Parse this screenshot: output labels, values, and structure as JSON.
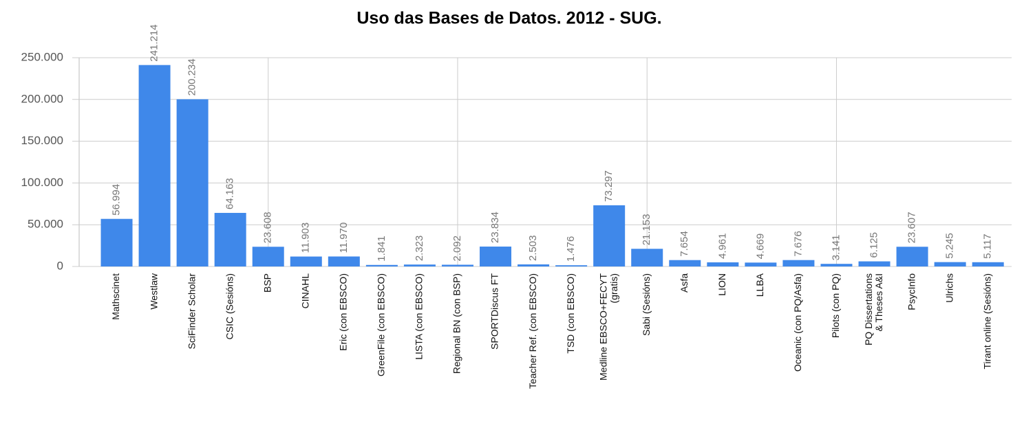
{
  "chart_data": {
    "type": "bar",
    "title": "Uso das Bases de Datos. 2012 - SUG.",
    "categories": [
      "Mathscinet",
      "Westlaw",
      "SciFinder Scholar",
      "CSIC (Sesións)",
      "BSP",
      "CINAHL",
      "Eric (con EBSCO)",
      "GreenFile (con EBSCO)",
      "LISTA (con EBSCO)",
      "Regional BN (con BSP)",
      "SPORTDiscus FT",
      "Teacher Ref. (con EBSCO)",
      "TSD (con EBSCO)",
      "Medline EBSCO+FECYT\n(gratis)",
      "Sabi (Sesións)",
      "Asfa",
      "LION",
      "LLBA",
      "Oceanic (con PQ/Asfa)",
      "Pilots (con PQ)",
      "PQ Dissertations\n& Theses A&I",
      "PsycInfo",
      "Ulrichs",
      "Tirant online (Sesións)"
    ],
    "values": [
      56994,
      241214,
      200234,
      64163,
      23608,
      11903,
      11970,
      1841,
      2323,
      2092,
      23834,
      2503,
      1476,
      73297,
      21153,
      7654,
      4961,
      4669,
      7676,
      3141,
      6125,
      23607,
      5245,
      5117
    ],
    "value_labels": [
      "56.994",
      "241.214",
      "200.234",
      "64.163",
      "23.608",
      "11.903",
      "11.970",
      "1.841",
      "2.323",
      "2.092",
      "23.834",
      "2.503",
      "1.476",
      "73.297",
      "21.153",
      "7.654",
      "4.961",
      "4.669",
      "7.676",
      "3.141",
      "6.125",
      "23.607",
      "5.245",
      "5.117"
    ],
    "color": "#3f88ea",
    "ylim": [
      0,
      250000
    ],
    "yticks": [
      {
        "value": 0,
        "label": "0"
      },
      {
        "value": 50000,
        "label": "50.000"
      },
      {
        "value": 100000,
        "label": "100.000"
      },
      {
        "value": 150000,
        "label": "150.000"
      },
      {
        "value": 200000,
        "label": "200.000"
      },
      {
        "value": 250000,
        "label": "250.000"
      }
    ],
    "grid": true
  }
}
